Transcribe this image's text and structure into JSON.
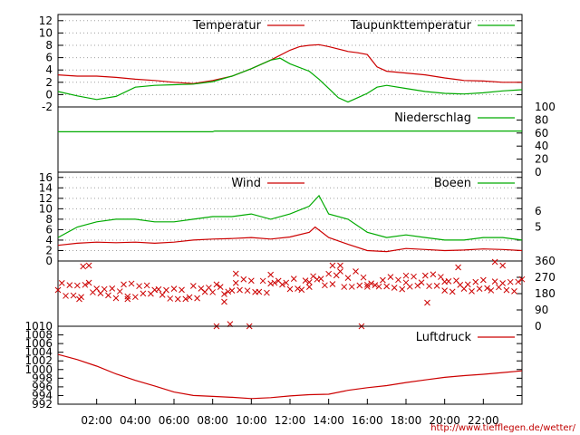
{
  "footer_url": "http://www.tiefflegen.de/wetter/",
  "colors": {
    "red": "#cc0000",
    "green": "#00aa00",
    "grid": "#a0a0a0"
  },
  "x_axis": {
    "hour_ticks": [
      2,
      4,
      6,
      8,
      10,
      12,
      14,
      16,
      18,
      20,
      22
    ],
    "labels": [
      "02:00",
      "04:00",
      "06:00",
      "08:00",
      "10:00",
      "12:00",
      "14:00",
      "16:00",
      "18:00",
      "20:00",
      "22:00"
    ],
    "range": [
      0,
      24
    ]
  },
  "chart_data": [
    {
      "type": "line",
      "panel": "temperature",
      "ylim": [
        -2,
        13
      ],
      "y_ticks": [
        -2,
        0,
        2,
        4,
        6,
        8,
        10,
        12
      ],
      "grid": true,
      "legend": "top-right",
      "series": [
        {
          "name": "Temperatur",
          "color": "#cc0000",
          "x": [
            0,
            1,
            2,
            3,
            4,
            5,
            6,
            7,
            8,
            9,
            10,
            11,
            12,
            12.5,
            13,
            13.5,
            14,
            15,
            15.5,
            16,
            16.5,
            17,
            18,
            19,
            20,
            21,
            22,
            23,
            24
          ],
          "y": [
            3.2,
            3.0,
            3.0,
            2.8,
            2.5,
            2.3,
            2.0,
            1.8,
            2.3,
            3.0,
            4.2,
            5.6,
            7.2,
            7.8,
            8.0,
            8.1,
            7.8,
            7.0,
            6.8,
            6.5,
            4.5,
            3.8,
            3.5,
            3.2,
            2.7,
            2.3,
            2.2,
            2.0,
            2.0
          ]
        },
        {
          "name": "Taupunkttemperatur",
          "color": "#00aa00",
          "x": [
            0,
            1,
            2,
            3,
            4,
            5,
            6,
            7,
            8,
            9,
            10,
            11,
            11.5,
            12,
            13,
            13.5,
            14,
            14.5,
            15,
            15.5,
            16,
            16.5,
            17,
            18,
            19,
            20,
            21,
            22,
            23,
            24
          ],
          "y": [
            0.5,
            -0.2,
            -0.8,
            -0.3,
            1.2,
            1.5,
            1.6,
            1.7,
            2.1,
            3.0,
            4.2,
            5.6,
            5.9,
            5.0,
            3.8,
            2.5,
            1.0,
            -0.5,
            -1.2,
            -0.5,
            0.2,
            1.2,
            1.5,
            1.0,
            0.5,
            0.2,
            0.1,
            0.3,
            0.6,
            0.8
          ]
        }
      ]
    },
    {
      "type": "line",
      "panel": "precipitation",
      "ylim": [
        0,
        100
      ],
      "y_ticks": [
        0,
        20,
        40,
        60,
        80,
        100
      ],
      "grid": false,
      "legend": "top-right",
      "series": [
        {
          "name": "Niederschlag",
          "color": "#00aa00",
          "x": [
            0,
            8,
            8.1,
            24
          ],
          "y": [
            62,
            62,
            63,
            63
          ]
        }
      ]
    },
    {
      "type": "line",
      "panel": "wind",
      "ylim": [
        0,
        17
      ],
      "y_ticks": [
        0,
        2,
        4,
        6,
        8,
        10,
        12,
        14,
        16
      ],
      "right_ticks": [
        "5",
        "6"
      ],
      "grid": true,
      "legend": "top-right",
      "series": [
        {
          "name": "Wind",
          "color": "#cc0000",
          "x": [
            0,
            1,
            2,
            3,
            4,
            5,
            6,
            7,
            8,
            9,
            10,
            11,
            12,
            13,
            13.3,
            14,
            15,
            16,
            17,
            18,
            19,
            20,
            21,
            22,
            23,
            24
          ],
          "y": [
            3.0,
            3.4,
            3.6,
            3.5,
            3.6,
            3.4,
            3.6,
            4.0,
            4.2,
            4.3,
            4.5,
            4.2,
            4.6,
            5.5,
            6.5,
            4.5,
            3.2,
            2.0,
            1.8,
            2.4,
            2.2,
            2.0,
            2.1,
            2.3,
            2.2,
            2.0
          ]
        },
        {
          "name": "Boeen",
          "color": "#00aa00",
          "x": [
            0,
            1,
            2,
            3,
            4,
            5,
            6,
            7,
            8,
            9,
            10,
            11,
            12,
            13,
            13.5,
            14,
            15,
            16,
            17,
            18,
            19,
            20,
            21,
            22,
            23,
            24
          ],
          "y": [
            4.5,
            6.5,
            7.5,
            8.0,
            8.0,
            7.5,
            7.5,
            8.0,
            8.5,
            8.5,
            9.0,
            8.0,
            9.0,
            10.5,
            12.5,
            9.0,
            8.0,
            5.5,
            4.5,
            5.0,
            4.5,
            4.0,
            4.0,
            4.5,
            4.5,
            4.0
          ]
        }
      ]
    },
    {
      "type": "scatter",
      "panel": "wind_direction",
      "ylim": [
        0,
        360
      ],
      "y_ticks": [
        0,
        90,
        180,
        270,
        360
      ],
      "grid": false,
      "marker": "x",
      "color": "#cc0000",
      "segments": [
        {
          "x": [
            0,
            4
          ],
          "dir": 200
        },
        {
          "x": [
            4,
            9
          ],
          "dir": 190
        },
        {
          "x": [
            9,
            11
          ],
          "dir": 215
        },
        {
          "x": [
            11,
            13
          ],
          "dir": 240
        },
        {
          "x": [
            13,
            16
          ],
          "dir": 260
        },
        {
          "x": [
            16,
            18
          ],
          "dir": 230
        },
        {
          "x": [
            18,
            20
          ],
          "dir": 250
        },
        {
          "x": [
            20,
            24
          ],
          "dir": 220
        }
      ],
      "outliers": [
        {
          "x": 1.3,
          "dir": 330
        },
        {
          "x": 1.6,
          "dir": 335
        },
        {
          "x": 1.1,
          "dir": 150
        },
        {
          "x": 3.6,
          "dir": 150
        },
        {
          "x": 8.2,
          "dir": 0
        },
        {
          "x": 8.9,
          "dir": 12
        },
        {
          "x": 9.9,
          "dir": 0
        },
        {
          "x": 8.6,
          "dir": 135
        },
        {
          "x": 9.2,
          "dir": 290
        },
        {
          "x": 15.7,
          "dir": 0
        },
        {
          "x": 14.2,
          "dir": 335
        },
        {
          "x": 14.6,
          "dir": 335
        },
        {
          "x": 19.1,
          "dir": 130
        },
        {
          "x": 20.7,
          "dir": 325
        },
        {
          "x": 22.6,
          "dir": 355
        },
        {
          "x": 23.0,
          "dir": 335
        }
      ]
    },
    {
      "type": "line",
      "panel": "pressure",
      "ylim": [
        992,
        1010
      ],
      "y_ticks": [
        992,
        994,
        996,
        998,
        1000,
        1002,
        1004,
        1006,
        1008,
        1010
      ],
      "grid": false,
      "legend": "top-right",
      "series": [
        {
          "name": "Luftdruck",
          "color": "#cc0000",
          "x": [
            0,
            1,
            2,
            3,
            4,
            5,
            6,
            7,
            8,
            9,
            10,
            11,
            12,
            13,
            14,
            15,
            16,
            17,
            18,
            19,
            20,
            21,
            22,
            23,
            24
          ],
          "y": [
            1003.5,
            1002.3,
            1000.8,
            999.0,
            997.5,
            996.2,
            994.8,
            994.0,
            993.8,
            993.6,
            993.3,
            993.5,
            993.9,
            994.2,
            994.3,
            995.2,
            995.8,
            996.3,
            997.0,
            997.6,
            998.2,
            998.6,
            998.9,
            999.3,
            999.7
          ]
        }
      ]
    }
  ]
}
